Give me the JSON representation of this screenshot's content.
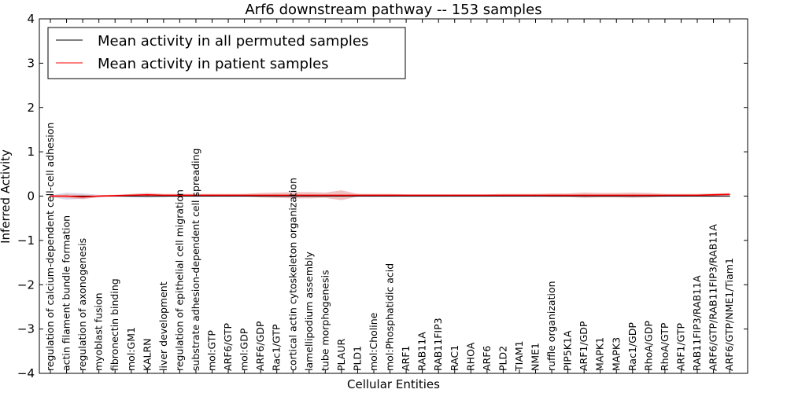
{
  "chart_data": {
    "type": "line",
    "title": "Arf6 downstream pathway -- 153 samples",
    "xlabel": "Cellular Entities",
    "ylabel": "Inferred Activity",
    "ylim": [
      -4,
      4
    ],
    "yticks": [
      -4,
      -3,
      -2,
      -1,
      0,
      1,
      2,
      3,
      4
    ],
    "ytick_labels": [
      "−4",
      "−3",
      "−2",
      "−1",
      "0",
      "1",
      "2",
      "3",
      "4"
    ],
    "legend_position": "top-left",
    "categories": [
      "regulation of calcium-dependent cell-cell adhesion",
      "actin filament bundle formation",
      "regulation of axonogenesis",
      "myoblast fusion",
      "fibronectin binding",
      "mol:GM1",
      "KALRN",
      "liver development",
      "regulation of epithelial cell migration",
      "substrate adhesion-dependent cell spreading",
      "mol:GTP",
      "ARF6/GTP",
      "mol:GDP",
      "ARF6/GDP",
      "Rac1/GTP",
      "cortical actin cytoskeleton organization",
      "lamellipodium assembly",
      "tube morphogenesis",
      "PLAUR",
      "PLD1",
      "mol:Choline",
      "mol:Phosphatidic acid",
      "ARF1",
      "RAB11A",
      "RAB11FIP3",
      "RAC1",
      "RHOA",
      "ARF6",
      "PLD2",
      "TIAM1",
      "NME1",
      "ruffle organization",
      "PIP5K1A",
      "ARF1/GDP",
      "MAPK1",
      "MAPK3",
      "Rac1/GDP",
      "RhoA/GDP",
      "RhoA/GTP",
      "ARF1/GTP",
      "RAB11FIP3/RAB11A",
      "ARF6/GTP/RAB11FIP3/RAB11A",
      "ARF6/GTP/NME1/Tiam1"
    ],
    "series": [
      {
        "name": "Mean activity in all permuted samples",
        "color": "#000000",
        "band_color": "#9999cc",
        "values": [
          0,
          0,
          0,
          0,
          0,
          0,
          0,
          0,
          0,
          0,
          0,
          0,
          0,
          0,
          0,
          0,
          0,
          0,
          0,
          0,
          0,
          0,
          0,
          0,
          0,
          0,
          0,
          0,
          0,
          0,
          0,
          0,
          0,
          0,
          0,
          0,
          0,
          0,
          0,
          0,
          0,
          0,
          0
        ],
        "band": [
          0.02,
          0.08,
          0.06,
          0.03,
          0.02,
          0.03,
          0.04,
          0.03,
          0.02,
          0.02,
          0.02,
          0.02,
          0.02,
          0.02,
          0.02,
          0.02,
          0.02,
          0.02,
          0.02,
          0.02,
          0.02,
          0.02,
          0.02,
          0.02,
          0.02,
          0.02,
          0.02,
          0.02,
          0.02,
          0.02,
          0.02,
          0.02,
          0.02,
          0.02,
          0.02,
          0.02,
          0.02,
          0.02,
          0.02,
          0.02,
          0.02,
          0.02,
          0.02
        ]
      },
      {
        "name": "Mean activity in patient samples",
        "color": "#ff0000",
        "band_color": "#e8a0a0",
        "values": [
          0.0,
          0.0,
          -0.02,
          0.0,
          0.01,
          0.02,
          0.03,
          0.02,
          0.02,
          0.02,
          0.02,
          0.02,
          0.02,
          0.02,
          0.02,
          0.02,
          0.02,
          0.02,
          0.02,
          0.02,
          0.02,
          0.02,
          0.02,
          0.02,
          0.02,
          0.02,
          0.02,
          0.02,
          0.02,
          0.02,
          0.02,
          0.02,
          0.02,
          0.02,
          0.02,
          0.02,
          0.02,
          0.02,
          0.02,
          0.02,
          0.02,
          0.03,
          0.04
        ],
        "band": [
          0.02,
          0.04,
          0.05,
          0.02,
          0.02,
          0.03,
          0.04,
          0.03,
          0.03,
          0.03,
          0.03,
          0.03,
          0.03,
          0.05,
          0.06,
          0.07,
          0.07,
          0.06,
          0.11,
          0.03,
          0.03,
          0.03,
          0.02,
          0.02,
          0.02,
          0.02,
          0.02,
          0.02,
          0.03,
          0.03,
          0.03,
          0.04,
          0.04,
          0.06,
          0.05,
          0.05,
          0.06,
          0.05,
          0.03,
          0.03,
          0.03,
          0.03,
          0.03
        ]
      }
    ]
  }
}
